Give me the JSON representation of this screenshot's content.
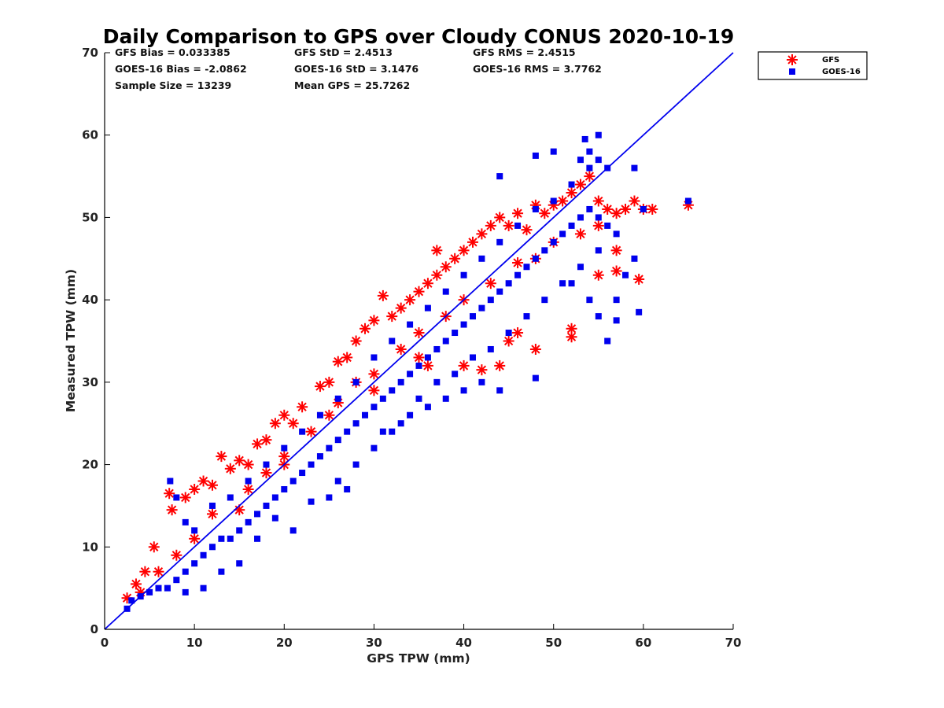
{
  "chart_data": {
    "type": "scatter",
    "title": "Daily Comparison to GPS over Cloudy CONUS 2020-10-19",
    "xlabel": "GPS TPW (mm)",
    "ylabel": "Measured TPW (mm)",
    "xlim": [
      0,
      70
    ],
    "ylim": [
      0,
      70
    ],
    "xticks": [
      "0",
      "10",
      "20",
      "30",
      "40",
      "50",
      "60",
      "70"
    ],
    "yticks": [
      "0",
      "10",
      "20",
      "30",
      "40",
      "50",
      "60",
      "70"
    ],
    "grid": false,
    "legend": "outside-top-right",
    "stats": [
      [
        "GFS Bias = 0.033385",
        "GFS StD = 2.4513",
        "GFS RMS = 2.4515"
      ],
      [
        "GOES-16 Bias = -2.0862",
        "GOES-16 StD = 3.1476",
        "GOES-16 RMS = 3.7762"
      ],
      [
        "Sample Size = 13239",
        "Mean GPS = 25.7262",
        ""
      ]
    ],
    "reference_line": {
      "from": [
        0,
        0
      ],
      "to": [
        70,
        70
      ],
      "color": "#0000ee"
    },
    "series": [
      {
        "name": "GFS",
        "marker": "asterisk",
        "color": "#ff0000",
        "points": [
          [
            2.5,
            3.8
          ],
          [
            3.5,
            5.5
          ],
          [
            4.5,
            7
          ],
          [
            5.5,
            10
          ],
          [
            7.2,
            16.5
          ],
          [
            7.5,
            14.5
          ],
          [
            9,
            16
          ],
          [
            10,
            17
          ],
          [
            11,
            18
          ],
          [
            12,
            17.5
          ],
          [
            13,
            21
          ],
          [
            14,
            19.5
          ],
          [
            15,
            20.5
          ],
          [
            16,
            20
          ],
          [
            17,
            22.5
          ],
          [
            18,
            23
          ],
          [
            19,
            25
          ],
          [
            20,
            26
          ],
          [
            21,
            25
          ],
          [
            22,
            27
          ],
          [
            24,
            29.5
          ],
          [
            25,
            30
          ],
          [
            26,
            32.5
          ],
          [
            27,
            33
          ],
          [
            28,
            35
          ],
          [
            29,
            36.5
          ],
          [
            30,
            37.5
          ],
          [
            31,
            40.5
          ],
          [
            32,
            38
          ],
          [
            33,
            39
          ],
          [
            34,
            40
          ],
          [
            35,
            41
          ],
          [
            36,
            42
          ],
          [
            37,
            43
          ],
          [
            38,
            44
          ],
          [
            39,
            45
          ],
          [
            40,
            46
          ],
          [
            41,
            47
          ],
          [
            42,
            48
          ],
          [
            43,
            49
          ],
          [
            44,
            50
          ],
          [
            45,
            49
          ],
          [
            46,
            50.5
          ],
          [
            47,
            48.5
          ],
          [
            48,
            51.5
          ],
          [
            49,
            50.5
          ],
          [
            50,
            51.5
          ],
          [
            51,
            52
          ],
          [
            52,
            53
          ],
          [
            53,
            54
          ],
          [
            54,
            55
          ],
          [
            55,
            52
          ],
          [
            56,
            51
          ],
          [
            57,
            50.5
          ],
          [
            58,
            51
          ],
          [
            59,
            52
          ],
          [
            60,
            51
          ],
          [
            61,
            51
          ],
          [
            65,
            51.5
          ],
          [
            57,
            46
          ],
          [
            57,
            43.5
          ],
          [
            55,
            43
          ],
          [
            59.5,
            42.5
          ],
          [
            52,
            36.5
          ],
          [
            52,
            35.5
          ],
          [
            48,
            34
          ],
          [
            44,
            32
          ],
          [
            42,
            31.5
          ],
          [
            40,
            32
          ],
          [
            45,
            35
          ],
          [
            46,
            36
          ],
          [
            36,
            32
          ],
          [
            12,
            14
          ],
          [
            15,
            14.5
          ],
          [
            18,
            19
          ],
          [
            20,
            21
          ],
          [
            23,
            24
          ],
          [
            26,
            27.5
          ],
          [
            28,
            30
          ],
          [
            30,
            31
          ],
          [
            33,
            34
          ],
          [
            35,
            36
          ],
          [
            38,
            38
          ],
          [
            40,
            40
          ],
          [
            43,
            42
          ],
          [
            46,
            44.5
          ],
          [
            48,
            45
          ],
          [
            50,
            47
          ],
          [
            53,
            48
          ],
          [
            55,
            49
          ],
          [
            35,
            33
          ],
          [
            30,
            29
          ],
          [
            25,
            26
          ],
          [
            20,
            20
          ],
          [
            16,
            17
          ],
          [
            10,
            11
          ],
          [
            8,
            9
          ],
          [
            6,
            7
          ],
          [
            4,
            4.5
          ],
          [
            37,
            46
          ]
        ]
      },
      {
        "name": "GOES-16",
        "marker": "square",
        "color": "#0000ee",
        "points": [
          [
            2.5,
            2.5
          ],
          [
            3,
            3.5
          ],
          [
            4,
            4
          ],
          [
            5,
            4.5
          ],
          [
            6,
            5
          ],
          [
            7,
            5
          ],
          [
            8,
            6
          ],
          [
            9,
            7
          ],
          [
            10,
            8
          ],
          [
            11,
            9
          ],
          [
            12,
            10
          ],
          [
            13,
            11
          ],
          [
            14,
            11
          ],
          [
            15,
            12
          ],
          [
            16,
            13
          ],
          [
            17,
            14
          ],
          [
            18,
            15
          ],
          [
            19,
            16
          ],
          [
            20,
            17
          ],
          [
            21,
            18
          ],
          [
            22,
            19
          ],
          [
            23,
            20
          ],
          [
            24,
            21
          ],
          [
            25,
            22
          ],
          [
            26,
            23
          ],
          [
            27,
            24
          ],
          [
            28,
            25
          ],
          [
            29,
            26
          ],
          [
            30,
            27
          ],
          [
            31,
            28
          ],
          [
            32,
            29
          ],
          [
            33,
            30
          ],
          [
            34,
            31
          ],
          [
            35,
            32
          ],
          [
            36,
            33
          ],
          [
            37,
            34
          ],
          [
            38,
            35
          ],
          [
            39,
            36
          ],
          [
            40,
            37
          ],
          [
            41,
            38
          ],
          [
            42,
            39
          ],
          [
            43,
            40
          ],
          [
            44,
            41
          ],
          [
            45,
            42
          ],
          [
            46,
            43
          ],
          [
            47,
            44
          ],
          [
            48,
            45
          ],
          [
            49,
            46
          ],
          [
            50,
            47
          ],
          [
            51,
            48
          ],
          [
            52,
            49
          ],
          [
            53,
            50
          ],
          [
            54,
            51
          ],
          [
            55,
            50
          ],
          [
            56,
            49
          ],
          [
            57,
            48
          ],
          [
            7.3,
            18
          ],
          [
            8,
            16
          ],
          [
            9,
            13
          ],
          [
            10,
            12
          ],
          [
            12,
            15
          ],
          [
            14,
            16
          ],
          [
            16,
            18
          ],
          [
            18,
            20
          ],
          [
            20,
            22
          ],
          [
            22,
            24
          ],
          [
            24,
            26
          ],
          [
            26,
            28
          ],
          [
            28,
            30
          ],
          [
            30,
            33
          ],
          [
            32,
            35
          ],
          [
            34,
            37
          ],
          [
            36,
            39
          ],
          [
            38,
            41
          ],
          [
            40,
            43
          ],
          [
            42,
            45
          ],
          [
            44,
            47
          ],
          [
            46,
            49
          ],
          [
            48,
            51
          ],
          [
            50,
            52
          ],
          [
            52,
            54
          ],
          [
            54,
            56
          ],
          [
            53,
            57
          ],
          [
            54,
            58
          ],
          [
            55,
            57
          ],
          [
            56,
            56
          ],
          [
            50,
            58
          ],
          [
            53.5,
            59.5
          ],
          [
            55,
            60
          ],
          [
            59,
            56
          ],
          [
            48,
            57.5
          ],
          [
            44,
            55
          ],
          [
            52,
            42
          ],
          [
            54,
            40
          ],
          [
            55,
            38
          ],
          [
            56,
            35
          ],
          [
            57,
            40
          ],
          [
            57,
            37.5
          ],
          [
            59.5,
            38.5
          ],
          [
            60,
            51
          ],
          [
            65,
            52
          ],
          [
            58,
            43
          ],
          [
            59,
            45
          ],
          [
            40,
            29
          ],
          [
            42,
            30
          ],
          [
            44,
            29
          ],
          [
            48,
            30.5
          ],
          [
            38,
            28
          ],
          [
            36,
            27
          ],
          [
            34,
            26
          ],
          [
            32,
            24
          ],
          [
            30,
            22
          ],
          [
            27,
            17
          ],
          [
            25,
            16
          ],
          [
            23,
            15.5
          ],
          [
            21,
            12
          ],
          [
            19,
            13.5
          ],
          [
            17,
            11
          ],
          [
            15,
            8
          ],
          [
            13,
            7
          ],
          [
            11,
            5
          ],
          [
            9,
            4.5
          ],
          [
            26,
            18
          ],
          [
            28,
            20
          ],
          [
            31,
            24
          ],
          [
            33,
            25
          ],
          [
            35,
            28
          ],
          [
            37,
            30
          ],
          [
            39,
            31
          ],
          [
            41,
            33
          ],
          [
            43,
            34
          ],
          [
            45,
            36
          ],
          [
            47,
            38
          ],
          [
            49,
            40
          ],
          [
            51,
            42
          ],
          [
            53,
            44
          ],
          [
            55,
            46
          ]
        ]
      }
    ]
  }
}
